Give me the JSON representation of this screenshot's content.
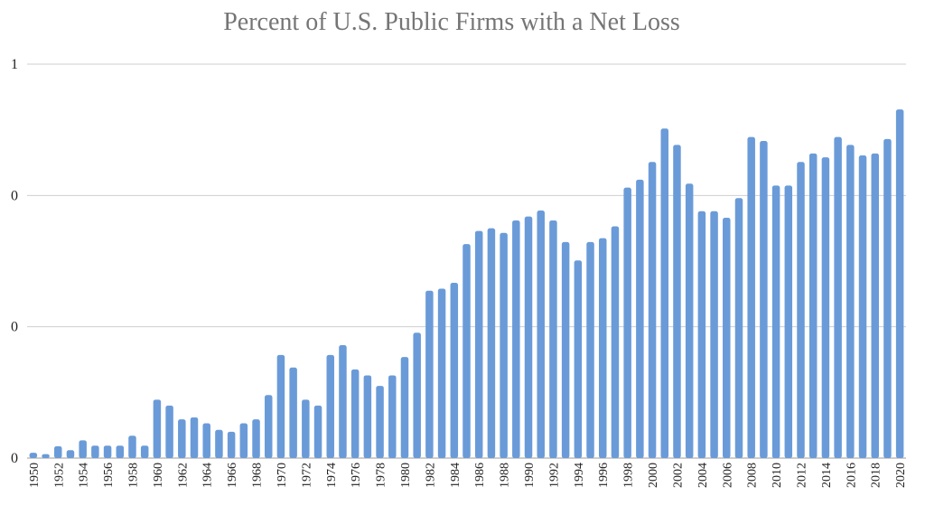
{
  "chart_data": {
    "type": "bar",
    "title": "Percent of U.S. Public Firms with a Net Loss",
    "xlabel": "",
    "ylabel": "",
    "ylim": [
      0,
      0.6
    ],
    "y_tick_values": [
      0,
      0.2,
      0.4,
      0.6
    ],
    "y_tick_labels": [
      "0",
      "0",
      "0",
      "1"
    ],
    "grid": true,
    "legend": "none",
    "bar_color": "#6A9BD8",
    "categories": [
      "1950",
      "1951",
      "1952",
      "1953",
      "1954",
      "1955",
      "1956",
      "1957",
      "1958",
      "1959",
      "1960",
      "1961",
      "1962",
      "1963",
      "1964",
      "1965",
      "1966",
      "1967",
      "1968",
      "1969",
      "1970",
      "1971",
      "1972",
      "1973",
      "1974",
      "1975",
      "1976",
      "1977",
      "1978",
      "1979",
      "1980",
      "1981",
      "1982",
      "1983",
      "1984",
      "1985",
      "1986",
      "1987",
      "1988",
      "1989",
      "1990",
      "1991",
      "1992",
      "1993",
      "1994",
      "1995",
      "1996",
      "1997",
      "1998",
      "1999",
      "2000",
      "2001",
      "2002",
      "2003",
      "2004",
      "2005",
      "2006",
      "2007",
      "2008",
      "2009",
      "2010",
      "2011",
      "2012",
      "2013",
      "2014",
      "2015",
      "2016",
      "2017",
      "2018",
      "2019",
      "2020"
    ],
    "x_tick_labels": [
      "1950",
      "",
      "1952",
      "",
      "1954",
      "",
      "1956",
      "",
      "1958",
      "",
      "1960",
      "",
      "1962",
      "",
      "1964",
      "",
      "1966",
      "",
      "1968",
      "",
      "1970",
      "",
      "1972",
      "",
      "1974",
      "",
      "1976",
      "",
      "1978",
      "",
      "1980",
      "",
      "1982",
      "",
      "1984",
      "",
      "1986",
      "",
      "1988",
      "",
      "1990",
      "",
      "1992",
      "",
      "1994",
      "",
      "1996",
      "",
      "1998",
      "",
      "2000",
      "",
      "2002",
      "",
      "2004",
      "",
      "2006",
      "",
      "2008",
      "",
      "2010",
      "",
      "2012",
      "",
      "2014",
      "",
      "2016",
      "",
      "2018",
      "",
      "2020"
    ],
    "values": [
      0.008,
      0.006,
      0.018,
      0.012,
      0.027,
      0.019,
      0.019,
      0.019,
      0.034,
      0.019,
      0.089,
      0.08,
      0.059,
      0.062,
      0.053,
      0.043,
      0.04,
      0.053,
      0.059,
      0.096,
      0.157,
      0.138,
      0.089,
      0.08,
      0.157,
      0.172,
      0.135,
      0.126,
      0.11,
      0.126,
      0.154,
      0.191,
      0.255,
      0.258,
      0.267,
      0.326,
      0.346,
      0.35,
      0.343,
      0.362,
      0.368,
      0.377,
      0.362,
      0.329,
      0.301,
      0.329,
      0.335,
      0.353,
      0.412,
      0.424,
      0.451,
      0.502,
      0.477,
      0.418,
      0.376,
      0.376,
      0.366,
      0.396,
      0.489,
      0.483,
      0.415,
      0.415,
      0.451,
      0.464,
      0.458,
      0.489,
      0.477,
      0.461,
      0.464,
      0.486,
      0.531
    ]
  }
}
